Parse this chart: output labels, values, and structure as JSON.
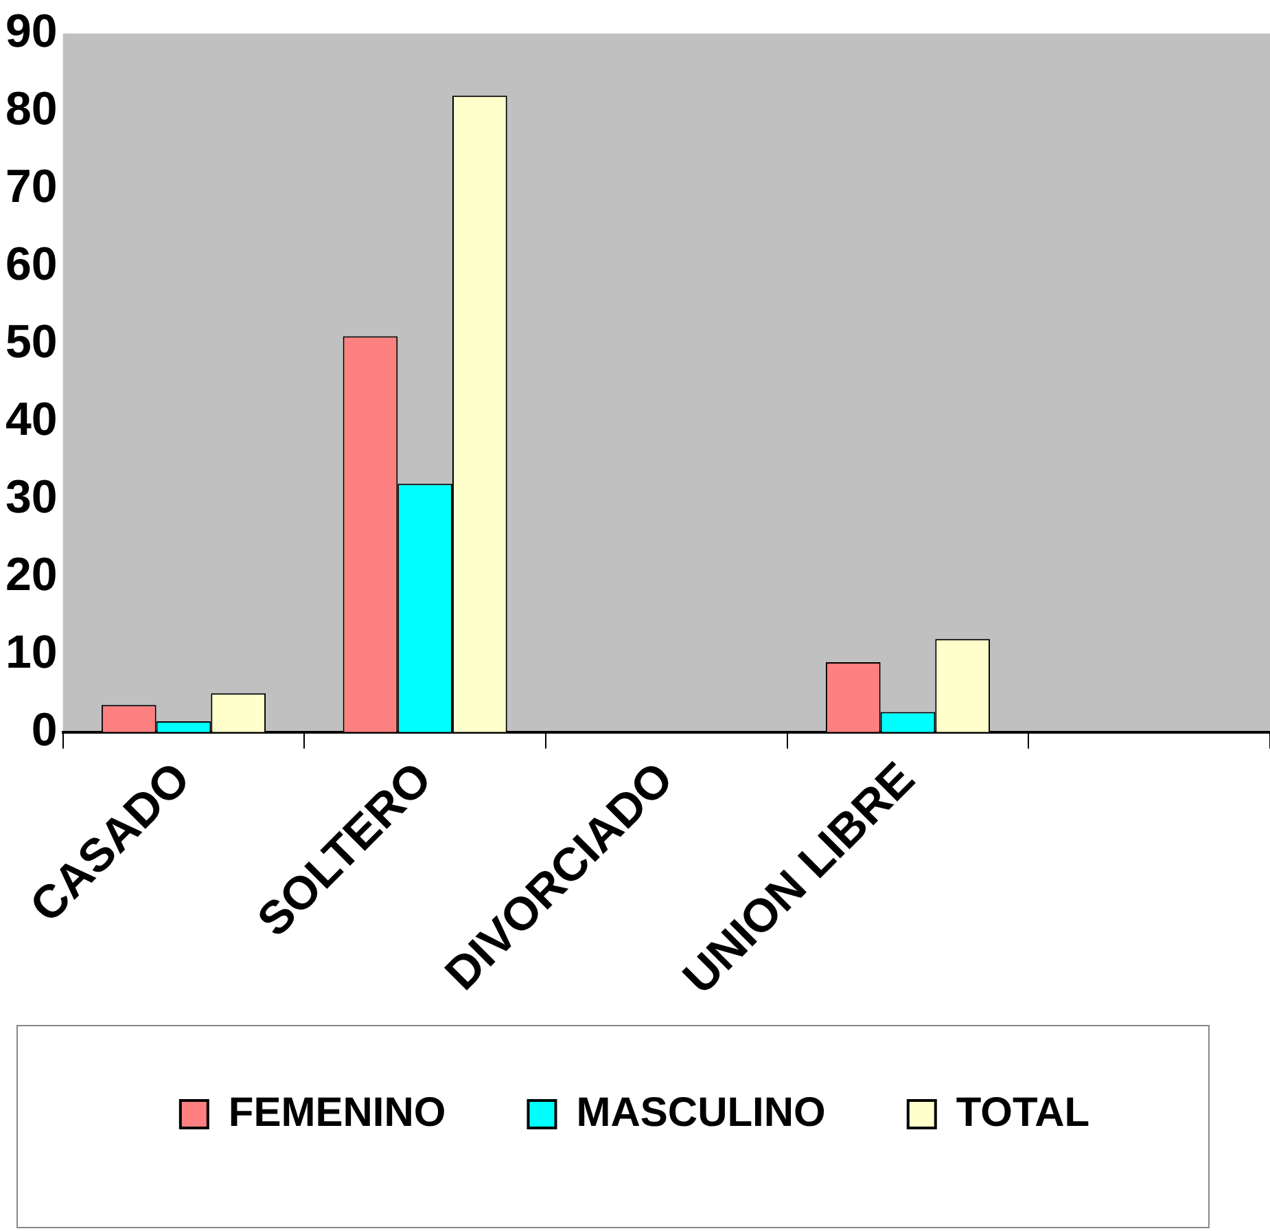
{
  "chart_data": {
    "type": "bar",
    "categories": [
      "CASADO",
      "SOLTERO",
      "DIVORCIADO",
      "UNION LIBRE",
      null
    ],
    "series": [
      {
        "name": "FEMENINO",
        "color": "#ff8080",
        "values": [
          3.5,
          51,
          0,
          9,
          null
        ]
      },
      {
        "name": "MASCULINO",
        "color": "#00ffff",
        "values": [
          1.4,
          32,
          0,
          2.6,
          null
        ]
      },
      {
        "name": "TOTAL",
        "color": "#ffffcc",
        "values": [
          5,
          82,
          0,
          12,
          null
        ]
      }
    ],
    "ylim": [
      0,
      90
    ],
    "yticks": [
      0,
      10,
      20,
      30,
      40,
      50,
      60,
      70,
      80,
      90
    ],
    "grid": false,
    "legend": "bottom"
  }
}
